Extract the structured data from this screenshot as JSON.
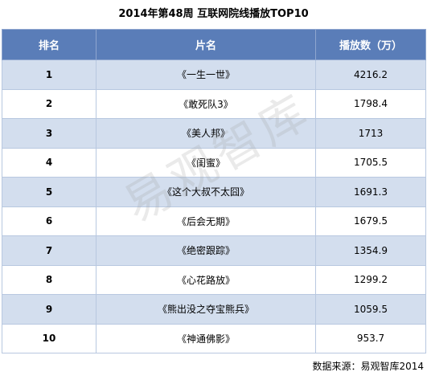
{
  "chart_data": {
    "type": "table",
    "title": "2014年第48周 互联网院线播放TOP10",
    "columns": [
      "排名",
      "片名",
      "播放数（万）"
    ],
    "rows": [
      {
        "rank": "1",
        "name": "《一生一世》",
        "plays": "4216.2"
      },
      {
        "rank": "2",
        "name": "《敢死队3》",
        "plays": "1798.4"
      },
      {
        "rank": "3",
        "name": "《美人邦》",
        "plays": "1713"
      },
      {
        "rank": "4",
        "name": "《闺蜜》",
        "plays": "1705.5"
      },
      {
        "rank": "5",
        "name": "《这个大叔不太囧》",
        "plays": "1691.3"
      },
      {
        "rank": "6",
        "name": "《后会无期》",
        "plays": "1679.5"
      },
      {
        "rank": "7",
        "name": "《绝密跟踪》",
        "plays": "1354.9"
      },
      {
        "rank": "8",
        "name": "《心花路放》",
        "plays": "1299.2"
      },
      {
        "rank": "9",
        "name": "《熊出没之夺宝熊兵》",
        "plays": "1059.5"
      },
      {
        "rank": "10",
        "name": "《神通佛影》",
        "plays": "953.7"
      }
    ],
    "source": "数据来源：易观智库2014"
  },
  "watermark": "易观智库",
  "colors": {
    "header_bg": "#5a7db8",
    "band_bg": "#d3deee"
  }
}
